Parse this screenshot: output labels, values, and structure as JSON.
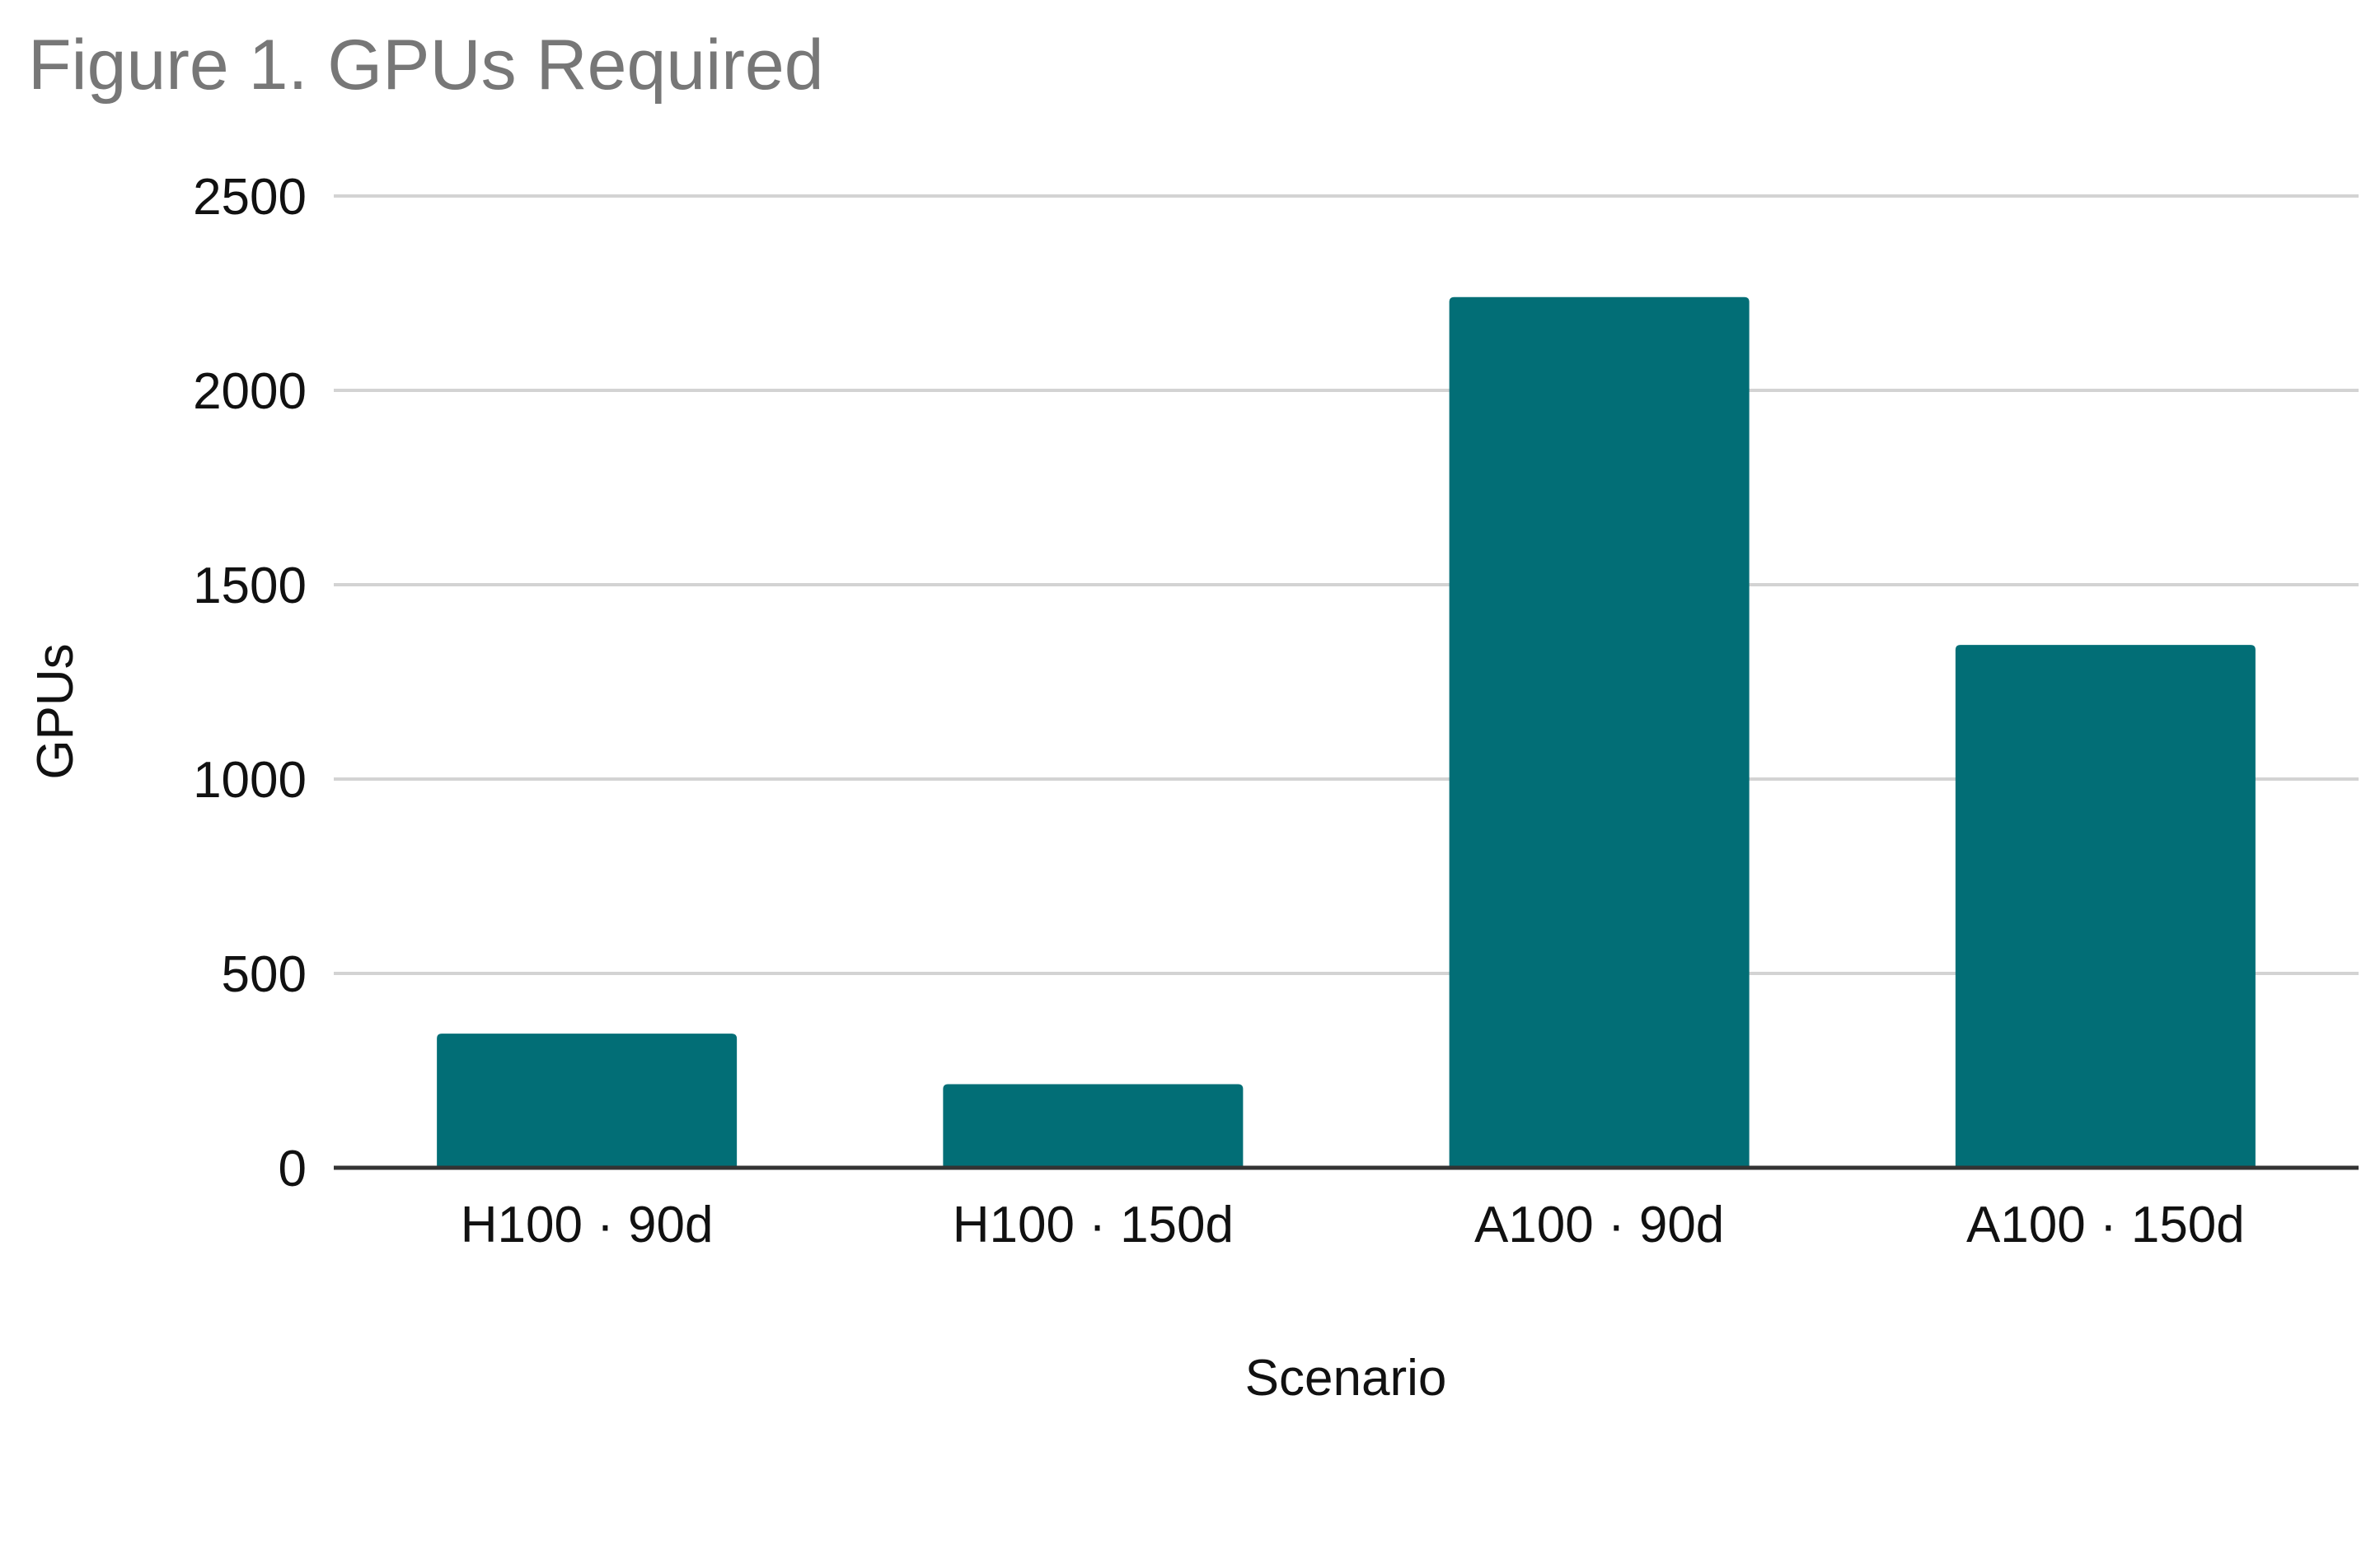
{
  "chart_data": {
    "type": "bar",
    "title": "Figure 1. GPUs Required",
    "xlabel": "Scenario",
    "ylabel": "GPUs",
    "categories": [
      "H100 · 90d",
      "H100 · 150d",
      "A100 · 90d",
      "A100 · 150d"
    ],
    "values": [
      345,
      215,
      2240,
      1345
    ],
    "ylim": [
      0,
      2500
    ],
    "yticks": [
      0,
      500,
      1000,
      1500,
      2000,
      2500
    ],
    "grid": true,
    "legend": "none",
    "bar_color": "#026e76",
    "grid_color": "#d3d3d3",
    "axis_color": "#333333"
  }
}
